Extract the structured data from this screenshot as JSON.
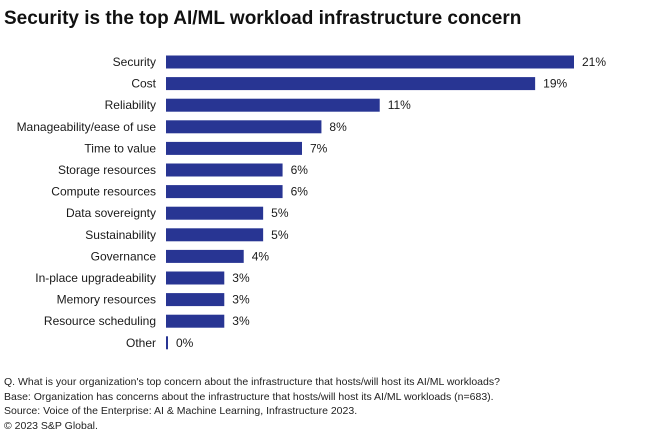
{
  "chart_data": {
    "type": "bar",
    "orientation": "horizontal",
    "title": "Security is the top AI/ML workload infrastructure concern",
    "categories": [
      "Security",
      "Cost",
      "Reliability",
      "Manageability/ease of use",
      "Time to value",
      "Storage resources",
      "Compute resources",
      "Data sovereignty",
      "Sustainability",
      "Governance",
      "In-place upgradeability",
      "Memory resources",
      "Resource scheduling",
      "Other"
    ],
    "values": [
      21,
      19,
      11,
      8,
      7,
      6,
      6,
      5,
      5,
      4,
      3,
      3,
      3,
      0
    ],
    "value_labels": [
      "21%",
      "19%",
      "11%",
      "8%",
      "7%",
      "6%",
      "6%",
      "5%",
      "5%",
      "4%",
      "3%",
      "3%",
      "3%",
      "0%"
    ],
    "xlabel": "",
    "ylabel": "",
    "xlim": [
      0,
      21
    ],
    "grid": false,
    "bar_color": "#283593"
  },
  "footnotes": {
    "question": "Q. What is your organization's top concern about the infrastructure that hosts/will host its AI/ML workloads?",
    "base": "Base: Organization has concerns about the infrastructure that hosts/will host its AI/ML workloads (n=683).",
    "source": "Source: Voice of the Enterprise: AI & Machine Learning, Infrastructure 2023.",
    "copyright": "© 2023 S&P Global."
  }
}
